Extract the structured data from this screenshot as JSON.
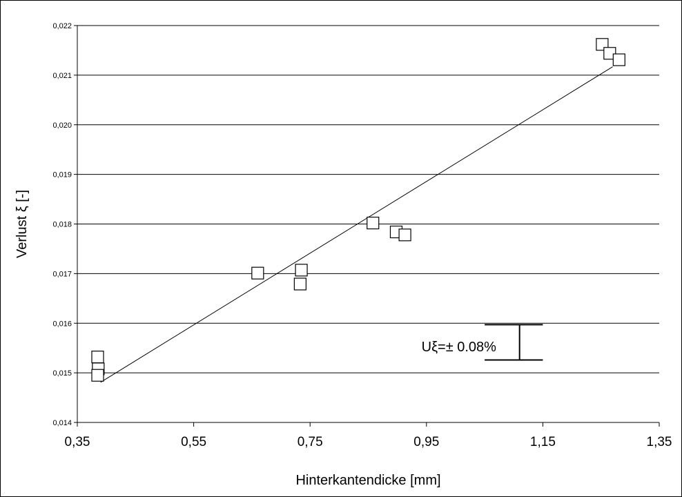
{
  "chart_data": {
    "type": "scatter",
    "title": "",
    "xlabel": "Hinterkantendicke  [mm]",
    "ylabel": "Verlust ξ [-]",
    "xlim": [
      0.35,
      1.35
    ],
    "ylim": [
      0.014,
      0.022
    ],
    "x_ticks": [
      0.35,
      0.55,
      0.75,
      0.95,
      1.15,
      1.35
    ],
    "x_tick_labels": [
      "0,35",
      "0,55",
      "0,75",
      "0,95",
      "1,15",
      "1,35"
    ],
    "y_ticks": [
      0.014,
      0.015,
      0.016,
      0.017,
      0.018,
      0.019,
      0.02,
      0.021,
      0.022
    ],
    "y_tick_labels": [
      "0,014",
      "0,015",
      "0,016",
      "0,017",
      "0,018",
      "0,019",
      "0,020",
      "0,021",
      "0,022"
    ],
    "grid": "horizontal",
    "marker": "open-square",
    "series": [
      {
        "points": [
          [
            0.385,
            0.01532
          ],
          [
            0.386,
            0.01508
          ],
          [
            0.385,
            0.01495
          ],
          [
            0.66,
            0.01701
          ],
          [
            0.733,
            0.01679
          ],
          [
            0.735,
            0.01707
          ],
          [
            0.858,
            0.01802
          ],
          [
            0.898,
            0.01784
          ],
          [
            0.913,
            0.01778
          ],
          [
            1.252,
            0.02162
          ],
          [
            1.265,
            0.02144
          ],
          [
            1.281,
            0.02131
          ]
        ]
      }
    ],
    "trendline": {
      "x": [
        0.39,
        1.27
      ],
      "y": [
        0.01481,
        0.02117
      ]
    },
    "annotations": [
      {
        "text": "Uξ=± 0.08%",
        "x": 1.07,
        "y": 0.01543
      }
    ],
    "error_bar": {
      "x": 1.11,
      "y_low": 0.01526,
      "y_high": 0.01597,
      "cap_from": 1.05,
      "cap_to": 1.15
    }
  }
}
